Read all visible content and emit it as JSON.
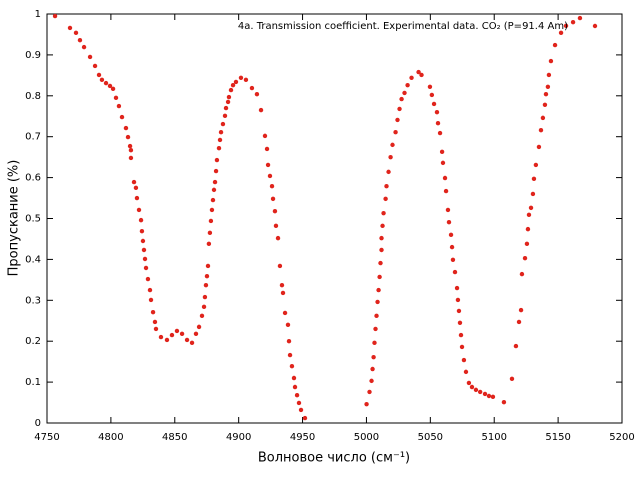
{
  "chart_data": {
    "type": "scatter",
    "x_label": "Волновое число (см⁻¹)",
    "y_label": "Пропускание (%)",
    "xlim": [
      4750,
      5200
    ],
    "ylim": [
      0,
      1
    ],
    "xticks": [
      4750,
      4800,
      4850,
      4900,
      4950,
      5000,
      5050,
      5100,
      5150,
      5200
    ],
    "yticks": [
      0,
      0.1,
      0.2,
      0.3,
      0.4,
      0.5,
      0.6,
      0.7,
      0.8,
      0.9,
      1
    ],
    "legend": "top-right",
    "series": [
      {
        "name": "4a. Transmission coefficient. Experimental data. CO₂ (P=91.4 Am)",
        "color": "#e0241c",
        "x": [
          4756.3,
          4768,
          4772.7,
          4775.8,
          4779,
          4783.7,
          4787.6,
          4790.7,
          4793,
          4796.2,
          4799.3,
          4801.7,
          4804,
          4806.3,
          4808.7,
          4811.8,
          4813.4,
          4815,
          4815.7,
          4815.7,
          4818.1,
          4819.6,
          4820.4,
          4822,
          4823.6,
          4824.3,
          4825.1,
          4825.9,
          4826.7,
          4827.5,
          4829,
          4830.6,
          4831.4,
          4833,
          4834.5,
          4835.3,
          4839.2,
          4843.9,
          4847.8,
          4851.7,
          4855.7,
          4859.6,
          4863.5,
          4866.6,
          4869,
          4871.3,
          4872.9,
          4873.6,
          4874.4,
          4875.2,
          4876,
          4876.7,
          4877.5,
          4878.3,
          4879.1,
          4879.9,
          4880.7,
          4881.5,
          4882.3,
          4883,
          4884.6,
          4885.4,
          4886.2,
          4887.7,
          4889.3,
          4890.1,
          4891.7,
          4892.4,
          4894,
          4895.6,
          4897.9,
          4901.8,
          4905.7,
          4910.4,
          4914.3,
          4917.5,
          4920.6,
          4922.2,
          4923,
          4924.5,
          4926.1,
          4926.9,
          4928.4,
          4929.2,
          4930.8,
          4932.3,
          4933.9,
          4934.7,
          4936.3,
          4938.6,
          4939.4,
          4940.2,
          4941.7,
          4943.3,
          4944.1,
          4945.7,
          4947.2,
          4948.8,
          4951.9,
          5000.1,
          5002.4,
          5004,
          5004.8,
          5005.6,
          5006.3,
          5007.1,
          5007.9,
          5008.7,
          5009.5,
          5010.3,
          5011,
          5011.8,
          5011.8,
          5012.6,
          5013.4,
          5015,
          5015.7,
          5017.3,
          5018.9,
          5020.4,
          5022.8,
          5024.3,
          5025.9,
          5027.5,
          5029.8,
          5032.2,
          5035.3,
          5040.8,
          5043.1,
          5049.7,
          5051.2,
          5052.9,
          5055.2,
          5056,
          5057.6,
          5059.2,
          5059.9,
          5061.5,
          5062.3,
          5063.8,
          5064.6,
          5066.2,
          5067,
          5067.7,
          5069.3,
          5070.9,
          5071.6,
          5072.4,
          5073.2,
          5074,
          5074.8,
          5076.3,
          5077.9,
          5080.2,
          5082.6,
          5085.7,
          5089,
          5092.8,
          5095.9,
          5099,
          5107.6,
          5113.9,
          5117,
          5119.4,
          5121,
          5121.7,
          5124.1,
          5125.6,
          5126.4,
          5127.2,
          5128.8,
          5130.3,
          5131.1,
          5132.6,
          5135,
          5136.6,
          5138.1,
          5139.7,
          5140.5,
          5142,
          5142.8,
          5144.4,
          5147.6,
          5152.3,
          5156.2,
          5161.7,
          5167.1
        ],
        "values": [
          0.995,
          0.966,
          0.954,
          0.936,
          0.919,
          0.895,
          0.873,
          0.851,
          0.839,
          0.831,
          0.824,
          0.817,
          0.795,
          0.775,
          0.748,
          0.721,
          0.699,
          0.677,
          0.667,
          0.648,
          0.589,
          0.575,
          0.55,
          0.521,
          0.496,
          0.469,
          0.445,
          0.423,
          0.401,
          0.379,
          0.352,
          0.325,
          0.301,
          0.271,
          0.247,
          0.23,
          0.21,
          0.203,
          0.215,
          0.225,
          0.218,
          0.203,
          0.196,
          0.218,
          0.235,
          0.262,
          0.284,
          0.308,
          0.337,
          0.359,
          0.384,
          0.438,
          0.465,
          0.494,
          0.521,
          0.545,
          0.57,
          0.589,
          0.616,
          0.643,
          0.672,
          0.692,
          0.711,
          0.731,
          0.751,
          0.77,
          0.785,
          0.797,
          0.814,
          0.826,
          0.834,
          0.844,
          0.839,
          0.819,
          0.804,
          0.765,
          0.702,
          0.67,
          0.631,
          0.604,
          0.579,
          0.548,
          0.518,
          0.482,
          0.452,
          0.384,
          0.337,
          0.318,
          0.269,
          0.24,
          0.2,
          0.166,
          0.139,
          0.11,
          0.088,
          0.068,
          0.049,
          0.032,
          0.012,
          0.046,
          0.076,
          0.103,
          0.132,
          0.161,
          0.196,
          0.23,
          0.262,
          0.296,
          0.325,
          0.357,
          0.391,
          0.423,
          0.452,
          0.482,
          0.513,
          0.548,
          0.579,
          0.614,
          0.65,
          0.68,
          0.711,
          0.741,
          0.768,
          0.792,
          0.807,
          0.826,
          0.844,
          0.858,
          0.851,
          0.822,
          0.802,
          0.78,
          0.76,
          0.733,
          0.709,
          0.663,
          0.636,
          0.599,
          0.567,
          0.521,
          0.491,
          0.46,
          0.43,
          0.399,
          0.369,
          0.33,
          0.301,
          0.274,
          0.245,
          0.215,
          0.186,
          0.154,
          0.125,
          0.098,
          0.088,
          0.081,
          0.076,
          0.071,
          0.066,
          0.064,
          0.051,
          0.108,
          0.188,
          0.247,
          0.276,
          0.364,
          0.403,
          0.438,
          0.474,
          0.509,
          0.526,
          0.56,
          0.597,
          0.631,
          0.675,
          0.716,
          0.746,
          0.778,
          0.804,
          0.822,
          0.851,
          0.885,
          0.924,
          0.954,
          0.971,
          0.98,
          0.99
        ]
      }
    ]
  }
}
